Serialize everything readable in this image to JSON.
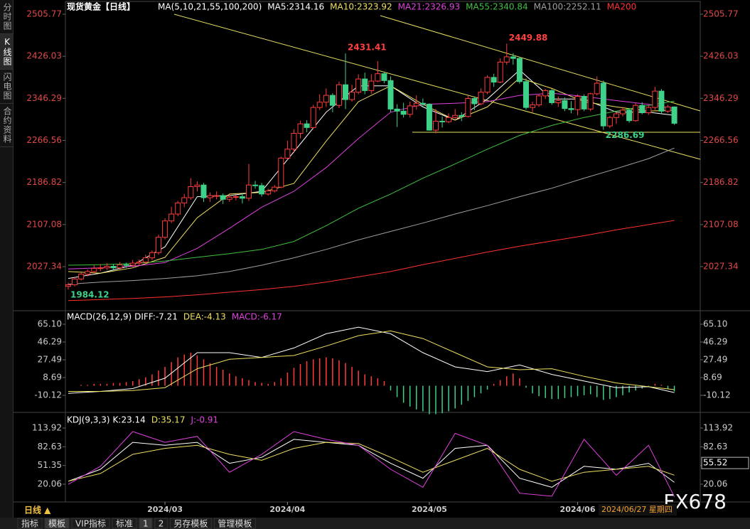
{
  "sidebar": [
    "分时图",
    "K线图",
    "闪电图",
    "合约资料"
  ],
  "chart_data": [
    {
      "type": "candlestick",
      "title": "现货黄金【日线】",
      "indicator": "MA(5,10,21,55,100,200)",
      "up_color": "#ff3c3c",
      "down_color": "#3ed18a",
      "ylim": [
        1943.8,
        2521.9
      ],
      "yticks": [
        2027.34,
        2107.08,
        2186.82,
        2266.56,
        2346.29,
        2426.03,
        2505.77
      ],
      "categories": [
        null,
        null,
        null,
        null,
        null,
        null,
        null,
        null,
        null,
        null,
        null,
        null,
        null,
        null,
        null,
        "2024/03",
        null,
        null,
        null,
        null,
        null,
        null,
        null,
        null,
        null,
        null,
        null,
        null,
        null,
        null,
        null,
        null,
        null,
        null,
        "2024/04",
        null,
        null,
        null,
        null,
        null,
        null,
        null,
        null,
        null,
        null,
        null,
        null,
        null,
        null,
        null,
        null,
        null,
        null,
        null,
        null,
        null,
        "2024/05",
        null,
        null,
        null,
        null,
        null,
        null,
        null,
        null,
        null,
        null,
        null,
        null,
        null,
        null,
        null,
        null,
        null,
        null,
        null,
        null,
        null,
        null,
        "2024/06",
        null,
        null,
        null,
        null,
        null,
        null,
        null,
        null,
        null,
        null,
        null,
        null,
        null,
        null,
        null
      ],
      "ohlc": [
        [
          1990,
          1997,
          1984.12,
          1993
        ],
        [
          1993,
          2008,
          1990,
          2004
        ],
        [
          2004,
          2016,
          2001,
          2013
        ],
        [
          2013,
          2022,
          2009,
          2018
        ],
        [
          2018,
          2030,
          2015,
          2024
        ],
        [
          2024,
          2032,
          2019,
          2025
        ],
        [
          2025,
          2034,
          2021,
          2028
        ],
        [
          2028,
          2032,
          2020,
          2025
        ],
        [
          2025,
          2036,
          2022,
          2031
        ],
        [
          2031,
          2035,
          2025,
          2030
        ],
        [
          2030,
          2040,
          2027,
          2034
        ],
        [
          2034,
          2041,
          2030,
          2036
        ],
        [
          2036,
          2050,
          2033,
          2044
        ],
        [
          2044,
          2058,
          2040,
          2054
        ],
        [
          2054,
          2088,
          2050,
          2083
        ],
        [
          2083,
          2119,
          2079,
          2114
        ],
        [
          2114,
          2141,
          2110,
          2127
        ],
        [
          2127,
          2152,
          2123,
          2148
        ],
        [
          2148,
          2165,
          2140,
          2158
        ],
        [
          2158,
          2195,
          2154,
          2179
        ],
        [
          2179,
          2189,
          2170,
          2182
        ],
        [
          2182,
          2186,
          2150,
          2158
        ],
        [
          2158,
          2168,
          2150,
          2162
        ],
        [
          2162,
          2170,
          2155,
          2162
        ],
        [
          2162,
          2166,
          2146,
          2155
        ],
        [
          2155,
          2164,
          2150,
          2159
        ],
        [
          2159,
          2163,
          2153,
          2160
        ],
        [
          2160,
          2166,
          2147,
          2157
        ],
        [
          2157,
          2222,
          2152,
          2182
        ],
        [
          2182,
          2190,
          2175,
          2181
        ],
        [
          2181,
          2186,
          2160,
          2165
        ],
        [
          2165,
          2175,
          2162,
          2171
        ],
        [
          2171,
          2182,
          2168,
          2178
        ],
        [
          2178,
          2236,
          2176,
          2233
        ],
        [
          2233,
          2266,
          2230,
          2250
        ],
        [
          2250,
          2288,
          2243,
          2280
        ],
        [
          2280,
          2304,
          2270,
          2298
        ],
        [
          2298,
          2305,
          2282,
          2291
        ],
        [
          2291,
          2334,
          2288,
          2329
        ],
        [
          2329,
          2354,
          2324,
          2339
        ],
        [
          2339,
          2365,
          2330,
          2352
        ],
        [
          2352,
          2356,
          2320,
          2333
        ],
        [
          2333,
          2378,
          2328,
          2372
        ],
        [
          2372,
          2431.41,
          2326,
          2344
        ],
        [
          2344,
          2372,
          2340,
          2358
        ],
        [
          2358,
          2392,
          2354,
          2383
        ],
        [
          2383,
          2395,
          2354,
          2361
        ],
        [
          2361,
          2392,
          2355,
          2379
        ],
        [
          2379,
          2417,
          2377,
          2393
        ],
        [
          2393,
          2397,
          2375,
          2380
        ],
        [
          2380,
          2388,
          2320,
          2326
        ],
        [
          2326,
          2335,
          2292,
          2322
        ],
        [
          2322,
          2338,
          2310,
          2316
        ],
        [
          2316,
          2340,
          2310,
          2332
        ],
        [
          2332,
          2352,
          2325,
          2337
        ],
        [
          2337,
          2346,
          2330,
          2335
        ],
        [
          2335,
          2337,
          2285,
          2286
        ],
        [
          2286,
          2326,
          2280,
          2303
        ],
        [
          2303,
          2312,
          2291,
          2302
        ],
        [
          2302,
          2318,
          2299,
          2310
        ],
        [
          2310,
          2326,
          2307,
          2314
        ],
        [
          2314,
          2320,
          2303,
          2312
        ],
        [
          2312,
          2352,
          2310,
          2346
        ],
        [
          2346,
          2350,
          2324,
          2336
        ],
        [
          2336,
          2365,
          2333,
          2358
        ],
        [
          2358,
          2390,
          2354,
          2386
        ],
        [
          2386,
          2393,
          2368,
          2377
        ],
        [
          2377,
          2422,
          2375,
          2415
        ],
        [
          2415,
          2449.88,
          2410,
          2425
        ],
        [
          2425,
          2432,
          2410,
          2422
        ],
        [
          2422,
          2425,
          2374,
          2378
        ],
        [
          2378,
          2384,
          2325,
          2329
        ],
        [
          2329,
          2340,
          2320,
          2334
        ],
        [
          2334,
          2354,
          2330,
          2351
        ],
        [
          2351,
          2364,
          2345,
          2361
        ],
        [
          2361,
          2364,
          2334,
          2338
        ],
        [
          2338,
          2350,
          2330,
          2342
        ],
        [
          2342,
          2348,
          2322,
          2327
        ],
        [
          2327,
          2341,
          2318,
          2325
        ],
        [
          2325,
          2354,
          2314,
          2350
        ],
        [
          2350,
          2354,
          2322,
          2326
        ],
        [
          2326,
          2357,
          2322,
          2355
        ],
        [
          2355,
          2388,
          2352,
          2375
        ],
        [
          2375,
          2380,
          2286.69,
          2294
        ],
        [
          2294,
          2313,
          2290,
          2310
        ],
        [
          2310,
          2320,
          2298,
          2317
        ],
        [
          2317,
          2330,
          2312,
          2324
        ],
        [
          2324,
          2328,
          2300,
          2304
        ],
        [
          2304,
          2338,
          2302,
          2333
        ],
        [
          2333,
          2339,
          2316,
          2319
        ],
        [
          2319,
          2333,
          2315,
          2329
        ],
        [
          2329,
          2368,
          2324,
          2360
        ],
        [
          2360,
          2364,
          2316,
          2322
        ],
        [
          2322,
          2334,
          2319,
          2330
        ],
        [
          2330,
          2331,
          2296,
          2299
        ]
      ],
      "annotations": [
        {
          "index": 0,
          "value": 1984.12,
          "color": "#3ed18a"
        },
        {
          "index": 43,
          "value": 2431.41,
          "color": "#ff4040"
        },
        {
          "index": 68,
          "value": 2449.88,
          "color": "#ff4040"
        },
        {
          "index": 83,
          "value": 2286.69,
          "color": "#3ed18a"
        }
      ],
      "x": [
        0,
        5,
        10,
        15,
        20,
        25,
        30,
        35,
        40,
        45,
        50,
        55,
        60,
        65,
        70,
        75,
        80,
        85,
        90,
        94
      ],
      "series": [
        {
          "name": "MA5:2314.16",
          "color": "#ffffff",
          "values": [
            2005,
            2015,
            2030,
            2065,
            2160,
            2162,
            2170,
            2245,
            2320,
            2370,
            2370,
            2330,
            2305,
            2345,
            2400,
            2345,
            2345,
            2320,
            2320,
            2314.16
          ]
        },
        {
          "name": "MA10:2323.92",
          "color": "#f0e060",
          "values": [
            2018,
            2015,
            2025,
            2045,
            2120,
            2165,
            2168,
            2185,
            2265,
            2340,
            2370,
            2335,
            2305,
            2330,
            2385,
            2365,
            2340,
            2330,
            2322,
            2323.92
          ]
        },
        {
          "name": "MA21:2326.93",
          "color": "#e040e0",
          "values": [
            2023,
            2025,
            2028,
            2035,
            2062,
            2100,
            2140,
            2170,
            2215,
            2270,
            2320,
            2335,
            2337,
            2340,
            2352,
            2356,
            2350,
            2342,
            2335,
            2326.93
          ]
        },
        {
          "name": "MA55:2340.84",
          "color": "#40c040",
          "values": [
            2030,
            2031,
            2033,
            2038,
            2045,
            2052,
            2060,
            2075,
            2105,
            2138,
            2165,
            2195,
            2222,
            2250,
            2276,
            2295,
            2310,
            2322,
            2333,
            2340.84
          ]
        },
        {
          "name": "MA100:2252.11",
          "color": "#a0a0a0",
          "values": [
            1994,
            1998,
            2001,
            2005,
            2010,
            2018,
            2030,
            2044,
            2060,
            2078,
            2094,
            2110,
            2127,
            2143,
            2160,
            2176,
            2195,
            2213,
            2232,
            2252.11
          ]
        },
        {
          "name": "MA200",
          "color": "#ff3030",
          "values": [
            1963,
            1965,
            1967,
            1970,
            1974,
            1979,
            1984,
            1990,
            1998,
            2008,
            2018,
            2031,
            2043,
            2055,
            2066,
            2076,
            2086,
            2097,
            2107,
            2115
          ]
        }
      ]
    },
    {
      "type": "macd",
      "title": "MACD(26,12,9)",
      "ylim": [
        -28.17,
        77.14
      ],
      "yticks": [
        -10.12,
        8.69,
        27.49,
        46.29,
        {
          "value": 65.1,
          "label": "65.10"
        }
      ],
      "histogram": {
        "name": "MACD:-6.17",
        "color": "#e040e0",
        "up_color": "#ff3c3c",
        "down_color": "#3ed18a",
        "values": [
          0,
          0,
          1,
          1,
          2,
          2,
          2,
          3,
          3,
          4,
          5,
          7,
          9,
          12,
          16,
          20,
          25,
          30,
          33,
          35,
          32,
          28,
          24,
          20,
          17,
          13,
          10,
          8,
          6,
          4,
          3,
          2,
          4,
          8,
          14,
          19,
          23,
          26,
          28,
          29,
          30,
          29,
          27,
          24,
          20,
          16,
          12,
          10,
          8,
          5,
          -5,
          -12,
          -18,
          -22,
          -25,
          -27,
          -30,
          -30,
          -29,
          -27,
          -24,
          -20,
          -16,
          -12,
          -8,
          -4,
          2,
          6,
          10,
          13,
          8,
          -2,
          -8,
          -11,
          -13,
          -14,
          -14,
          -13,
          -12,
          -11,
          -10,
          -9,
          -12,
          -15,
          -14,
          -12,
          -10,
          -7,
          -5,
          -3,
          -1,
          2,
          1,
          -3,
          -6
        ]
      },
      "x": [
        0,
        5,
        10,
        15,
        20,
        25,
        30,
        35,
        40,
        45,
        50,
        55,
        60,
        65,
        70,
        75,
        80,
        85,
        90,
        94
      ],
      "series": [
        {
          "name": "DIFF:-7.21",
          "color": "#ffffff",
          "values": [
            -8,
            -6,
            -3,
            8,
            35,
            35,
            30,
            40,
            55,
            62,
            55,
            35,
            20,
            15,
            22,
            12,
            5,
            -2,
            -1,
            -7.21
          ]
        },
        {
          "name": "DEA:-4.13",
          "color": "#f0e060",
          "values": [
            -6,
            -6,
            -5,
            -2,
            18,
            28,
            30,
            32,
            42,
            53,
            58,
            50,
            35,
            20,
            17,
            18,
            10,
            3,
            -1,
            -4.13
          ]
        }
      ]
    },
    {
      "type": "kdj",
      "title": "KDJ(9,3,3)",
      "ylim": [
        -8.45,
        128.18
      ],
      "yticks": [
        20.06,
        51.35,
        82.63,
        113.92
      ],
      "marker": 55.52,
      "x": [
        0,
        5,
        10,
        15,
        20,
        25,
        30,
        35,
        40,
        45,
        50,
        55,
        60,
        65,
        70,
        75,
        80,
        85,
        90,
        94
      ],
      "series": [
        {
          "name": "K:23.14",
          "color": "#ffffff",
          "values": [
            25,
            45,
            90,
            85,
            90,
            55,
            65,
            95,
            90,
            85,
            55,
            30,
            80,
            85,
            30,
            15,
            50,
            45,
            55,
            23.14
          ]
        },
        {
          "name": "D:35.17",
          "color": "#f0e060",
          "values": [
            25,
            38,
            70,
            80,
            85,
            70,
            60,
            80,
            90,
            88,
            65,
            40,
            60,
            80,
            45,
            25,
            40,
            45,
            50,
            35.17
          ]
        },
        {
          "name": "J:-0.91",
          "color": "#e040e0",
          "values": [
            20,
            50,
            108,
            90,
            100,
            40,
            70,
            108,
            95,
            85,
            45,
            15,
            105,
            85,
            5,
            0,
            95,
            35,
            85,
            -0.91
          ]
        }
      ]
    }
  ],
  "period": "日线 ▲",
  "cursor_date": "2024/06/27 星期四",
  "tabs": [
    "指标",
    "模板",
    "VIP指标",
    "标准",
    "1",
    "2",
    "另存模板",
    "管理模板"
  ],
  "watermark": "FX678"
}
